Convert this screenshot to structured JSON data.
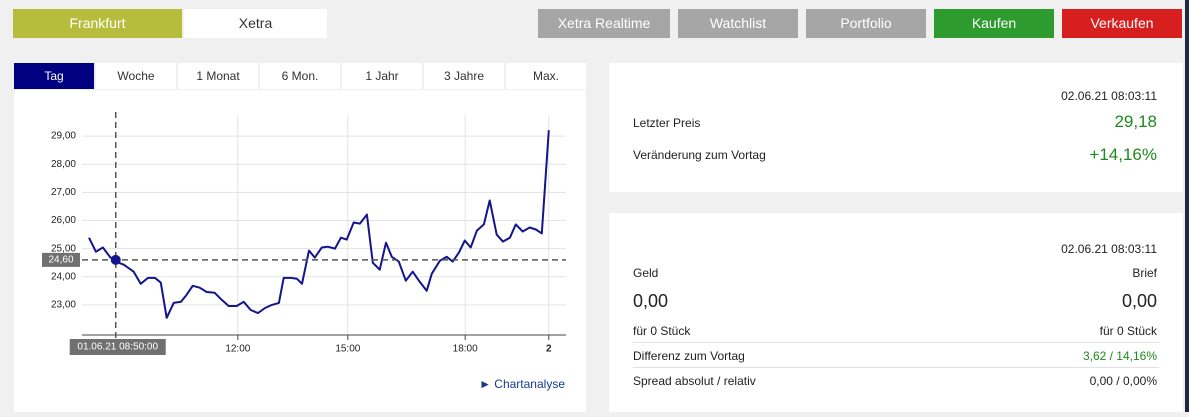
{
  "markets": [
    "Frankfurt",
    "Xetra"
  ],
  "actions": [
    "Xetra Realtime",
    "Watchlist",
    "Portfolio",
    "Kaufen",
    "Verkaufen"
  ],
  "tabs": [
    "Tag",
    "Woche",
    "1 Monat",
    "6 Mon.",
    "1 Jahr",
    "3 Jahre",
    "Max."
  ],
  "chart_data": {
    "type": "line",
    "color": "#14148c",
    "x": [
      7.94,
      8.13,
      8.32,
      8.51,
      8.67,
      8.89,
      9.16,
      9.35,
      9.55,
      9.74,
      9.9,
      10.06,
      10.25,
      10.45,
      10.58,
      10.77,
      10.96,
      11.15,
      11.37,
      11.56,
      11.75,
      11.97,
      12.16,
      12.35,
      12.55,
      12.74,
      12.93,
      13.12,
      13.25,
      13.45,
      13.61,
      13.75,
      13.94,
      14.1,
      14.29,
      14.45,
      14.65,
      14.81,
      14.97,
      15.16,
      15.33,
      15.52,
      15.68,
      15.87,
      16.04,
      16.2,
      16.39,
      16.58,
      16.77,
      16.96,
      17.15,
      17.29,
      17.51,
      17.7,
      17.86,
      18.03,
      18.19,
      18.35,
      18.52,
      18.71,
      18.87,
      19.06,
      19.23,
      19.42,
      19.58,
      19.77,
      19.96,
      20.13,
      20.29,
      20.48
    ],
    "values": [
      25.39,
      24.89,
      25.04,
      24.71,
      24.54,
      24.43,
      24.18,
      23.75,
      23.96,
      23.96,
      23.79,
      22.54,
      23.07,
      23.11,
      23.32,
      23.68,
      23.61,
      23.46,
      23.43,
      23.18,
      22.96,
      22.96,
      23.11,
      22.82,
      22.71,
      22.89,
      23.0,
      23.07,
      23.96,
      23.96,
      23.93,
      23.75,
      24.93,
      24.68,
      25.04,
      25.07,
      25.0,
      25.39,
      25.32,
      25.93,
      25.89,
      26.21,
      24.5,
      24.25,
      25.21,
      24.71,
      24.54,
      23.86,
      24.18,
      23.82,
      23.5,
      24.11,
      24.57,
      24.71,
      24.54,
      24.86,
      25.29,
      25.04,
      25.64,
      25.86,
      26.71,
      25.5,
      25.25,
      25.39,
      25.86,
      25.61,
      25.75,
      25.68,
      25.54,
      29.21
    ],
    "xlim": [
      7.75,
      20.95
    ],
    "ylim": [
      21.93,
      29.75
    ],
    "xticks": [
      {
        "value": 12,
        "label": "12:00"
      },
      {
        "value": 15,
        "label": "15:00"
      },
      {
        "value": 18.2,
        "label": "18:00"
      },
      {
        "value": 20.48,
        "label": "2"
      }
    ],
    "yticks": [
      {
        "value": 23,
        "label": "23,00"
      },
      {
        "value": 24,
        "label": "24,00"
      },
      {
        "value": 25,
        "label": "25,00"
      },
      {
        "value": 26,
        "label": "26,00"
      },
      {
        "value": 27,
        "label": "27,00"
      },
      {
        "value": 28,
        "label": "28,00"
      },
      {
        "value": 29,
        "label": "29,00"
      }
    ],
    "grid": true,
    "crosshair": {
      "x": 8.67,
      "x_label": "01.06.21 08:50:00",
      "y": {
        "value": 24.6,
        "label": "24,60"
      }
    }
  },
  "chart_link": "Chartanalyse",
  "quote": {
    "timestamp": "02.06.21 08:03:11",
    "rows": [
      {
        "label": "Letzter Preis",
        "value": "29,18"
      },
      {
        "label": "Veränderung zum Vortag",
        "value": "+14,16%"
      }
    ]
  },
  "orderbook": {
    "timestamp": "02.06.21 08:03:11",
    "bid_label": "Geld",
    "ask_label": "Brief",
    "bid": "0,00",
    "ask": "0,00",
    "bid_size": "für 0 Stück",
    "ask_size": "für 0 Stück",
    "rows": [
      {
        "label": "Differenz zum Vortag",
        "value": "3,62 / 14,16%"
      },
      {
        "label": "Spread absolut / relativ",
        "value": "0,00 / 0,00%"
      }
    ]
  }
}
